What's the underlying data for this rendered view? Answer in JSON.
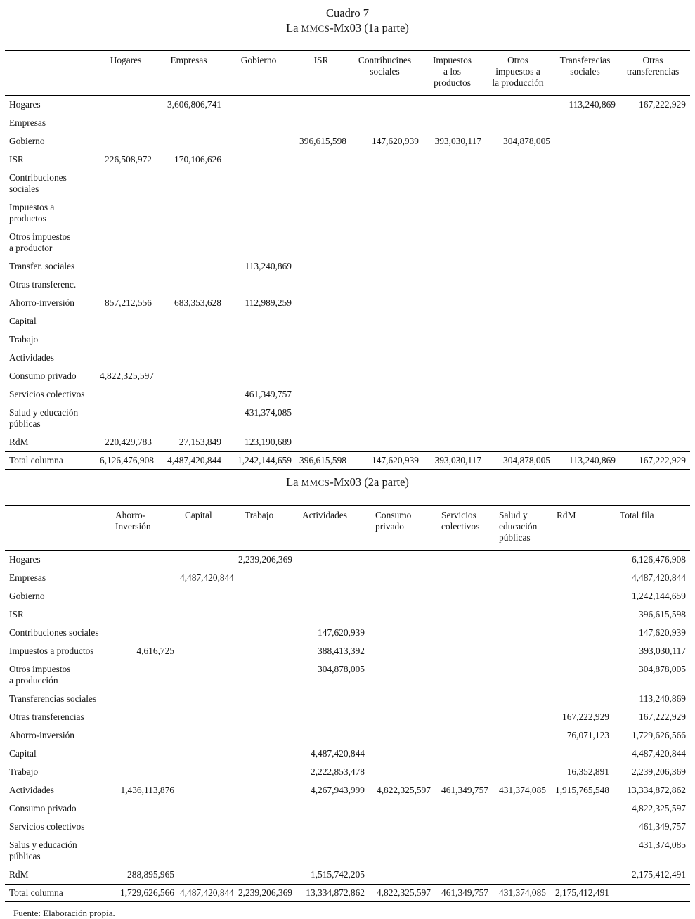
{
  "captions": {
    "cuadro": "Cuadro 7",
    "t1": {
      "pre": "La ",
      "sc": "MMCS",
      "post": "-Mx03 (1a parte)"
    },
    "t2": {
      "pre": "La ",
      "sc": "MMCS",
      "post": "-Mx03 (2a parte)"
    }
  },
  "source_note": "Fuente: Elaboración propia.",
  "tables": [
    {
      "id": "part1",
      "columns": [
        "",
        "Hogares",
        "Empresas",
        "Gobierno",
        "ISR",
        "Contribucines\nsociales",
        "Impuestos\na los\nproductos",
        "Otros\nimpuestos a\nla producción",
        "Transferecias\nsociales",
        "Otras\ntransferencias"
      ],
      "rows": [
        {
          "label": "Hogares",
          "values": [
            "",
            "3,606,806,741",
            "",
            "",
            "",
            "",
            "",
            "113,240,869",
            "167,222,929"
          ]
        },
        {
          "label": "Empresas",
          "values": [
            "",
            "",
            "",
            "",
            "",
            "",
            "",
            "",
            ""
          ]
        },
        {
          "label": "Gobierno",
          "values": [
            "",
            "",
            "",
            "396,615,598",
            "147,620,939",
            "393,030,117",
            "304,878,005",
            "",
            ""
          ]
        },
        {
          "label": "ISR",
          "values": [
            "226,508,972",
            "170,106,626",
            "",
            "",
            "",
            "",
            "",
            "",
            ""
          ]
        },
        {
          "label": "Contribuciones\nsociales",
          "values": [
            "",
            "",
            "",
            "",
            "",
            "",
            "",
            "",
            ""
          ]
        },
        {
          "label": "Impuestos a\nproductos",
          "values": [
            "",
            "",
            "",
            "",
            "",
            "",
            "",
            "",
            ""
          ]
        },
        {
          "label": "Otros impuestos\na productor",
          "values": [
            "",
            "",
            "",
            "",
            "",
            "",
            "",
            "",
            ""
          ]
        },
        {
          "label": "Transfer. sociales",
          "values": [
            "",
            "",
            "113,240,869",
            "",
            "",
            "",
            "",
            "",
            ""
          ]
        },
        {
          "label": "Otras transferenc.",
          "values": [
            "",
            "",
            "",
            "",
            "",
            "",
            "",
            "",
            ""
          ]
        },
        {
          "label": "Ahorro-inversión",
          "values": [
            "857,212,556",
            "683,353,628",
            "112,989,259",
            "",
            "",
            "",
            "",
            "",
            ""
          ]
        },
        {
          "label": "Capital",
          "values": [
            "",
            "",
            "",
            "",
            "",
            "",
            "",
            "",
            ""
          ]
        },
        {
          "label": "Trabajo",
          "values": [
            "",
            "",
            "",
            "",
            "",
            "",
            "",
            "",
            ""
          ]
        },
        {
          "label": "Actividades",
          "values": [
            "",
            "",
            "",
            "",
            "",
            "",
            "",
            "",
            ""
          ]
        },
        {
          "label": "Consumo privado",
          "values": [
            "4,822,325,597",
            "",
            "",
            "",
            "",
            "",
            "",
            "",
            ""
          ]
        },
        {
          "label": "Servicios colectivos",
          "values": [
            "",
            "",
            "461,349,757",
            "",
            "",
            "",
            "",
            "",
            ""
          ]
        },
        {
          "label": "Salud y educación\npúblicas",
          "values": [
            "",
            "",
            "431,374,085",
            "",
            "",
            "",
            "",
            "",
            ""
          ]
        },
        {
          "label": "RdM",
          "values": [
            "220,429,783",
            "27,153,849",
            "123,190,689",
            "",
            "",
            "",
            "",
            "",
            ""
          ]
        }
      ],
      "total": {
        "label": "Total columna",
        "values": [
          "6,126,476,908",
          "4,487,420,844",
          "1,242,144,659",
          "396,615,598",
          "147,620,939",
          "393,030,117",
          "304,878,005",
          "113,240,869",
          "167,222,929"
        ]
      }
    },
    {
      "id": "part2",
      "columns": [
        "",
        "Ahorro-\nInversión",
        "Capital",
        "Trabajo",
        "Actividades",
        "Consumo\nprivado",
        "Servicios\ncolectivos",
        "Salud y\neducación\npúblicas",
        "RdM",
        "Total fila"
      ],
      "rows": [
        {
          "label": "Hogares",
          "values": [
            "",
            "",
            "2,239,206,369",
            "",
            "",
            "",
            "",
            "",
            "6,126,476,908"
          ]
        },
        {
          "label": "Empresas",
          "values": [
            "",
            "4,487,420,844",
            "",
            "",
            "",
            "",
            "",
            "",
            "4,487,420,844"
          ]
        },
        {
          "label": "Gobierno",
          "values": [
            "",
            "",
            "",
            "",
            "",
            "",
            "",
            "",
            "1,242,144,659"
          ]
        },
        {
          "label": "ISR",
          "values": [
            "",
            "",
            "",
            "",
            "",
            "",
            "",
            "",
            "396,615,598"
          ]
        },
        {
          "label": "Contribuciones sociales",
          "values": [
            "",
            "",
            "",
            "147,620,939",
            "",
            "",
            "",
            "",
            "147,620,939"
          ]
        },
        {
          "label": "Impuestos a productos",
          "values": [
            "4,616,725",
            "",
            "",
            "388,413,392",
            "",
            "",
            "",
            "",
            "393,030,117"
          ]
        },
        {
          "label": "Otros impuestos\na producción",
          "values": [
            "",
            "",
            "",
            "304,878,005",
            "",
            "",
            "",
            "",
            "304,878,005"
          ]
        },
        {
          "label": "Transferencias sociales",
          "values": [
            "",
            "",
            "",
            "",
            "",
            "",
            "",
            "",
            "113,240,869"
          ]
        },
        {
          "label": "Otras transferencias",
          "values": [
            "",
            "",
            "",
            "",
            "",
            "",
            "",
            "167,222,929",
            "167,222,929"
          ]
        },
        {
          "label": "Ahorro-inversión",
          "values": [
            "",
            "",
            "",
            "",
            "",
            "",
            "",
            "76,071,123",
            "1,729,626,566"
          ]
        },
        {
          "label": "Capital",
          "values": [
            "",
            "",
            "",
            "4,487,420,844",
            "",
            "",
            "",
            "",
            "4,487,420,844"
          ]
        },
        {
          "label": "Trabajo",
          "values": [
            "",
            "",
            "",
            "2,222,853,478",
            "",
            "",
            "",
            "16,352,891",
            "2,239,206,369"
          ]
        },
        {
          "label": "Actividades",
          "values": [
            "1,436,113,876",
            "",
            "",
            "4,267,943,999",
            "4,822,325,597",
            "461,349,757",
            "431,374,085",
            "1,915,765,548",
            "13,334,872,862"
          ]
        },
        {
          "label": "Consumo privado",
          "values": [
            "",
            "",
            "",
            "",
            "",
            "",
            "",
            "",
            "4,822,325,597"
          ]
        },
        {
          "label": "Servicios colectivos",
          "values": [
            "",
            "",
            "",
            "",
            "",
            "",
            "",
            "",
            "461,349,757"
          ]
        },
        {
          "label": "Salus y educación\npúblicas",
          "values": [
            "",
            "",
            "",
            "",
            "",
            "",
            "",
            "",
            "431,374,085"
          ]
        },
        {
          "label": "RdM",
          "values": [
            "288,895,965",
            "",
            "",
            "1,515,742,205",
            "",
            "",
            "",
            "",
            "2,175,412,491"
          ]
        }
      ],
      "total": {
        "label": "Total columna",
        "values": [
          "1,729,626,566",
          "4,487,420,844",
          "2,239,206,369",
          "13,334,872,862",
          "4,822,325,597",
          "461,349,757",
          "431,374,085",
          "2,175,412,491",
          ""
        ]
      }
    }
  ]
}
